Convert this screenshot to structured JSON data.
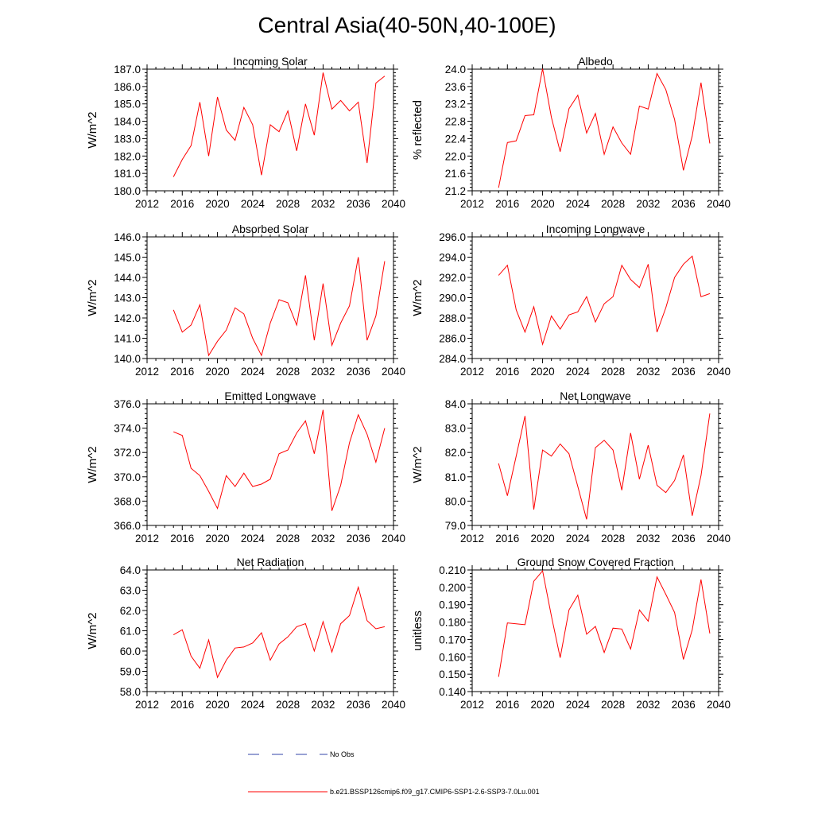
{
  "title": "Central Asia(40-50N,40-100E)",
  "legend": {
    "obs_label": "No Obs",
    "model_label": "b.e21.BSSP126cmip6.f09_g17.CMIP6-SSP1-2.6-SSP3-7.0Lu.001",
    "model_color": "#ff0000",
    "obs_color": "#3344aa"
  },
  "chart_data": [
    {
      "type": "line",
      "title": "Incoming Solar",
      "ylabel": "W/m^2",
      "xlim": [
        2012,
        2040
      ],
      "ylim": [
        180.0,
        187.0
      ],
      "x_ticks": [
        "2012",
        "2016",
        "2020",
        "2024",
        "2028",
        "2032",
        "2036",
        "2040"
      ],
      "y_ticks": [
        "180.0",
        "181.0",
        "182.0",
        "183.0",
        "184.0",
        "185.0",
        "186.0",
        "187.0"
      ],
      "x": [
        2015,
        2016,
        2017,
        2018,
        2019,
        2020,
        2021,
        2022,
        2023,
        2024,
        2025,
        2026,
        2027,
        2028,
        2029,
        2030,
        2031,
        2032,
        2033,
        2034,
        2035,
        2036,
        2037,
        2038,
        2039
      ],
      "values": [
        180.8,
        181.8,
        182.6,
        185.1,
        182.0,
        185.4,
        183.5,
        182.9,
        184.8,
        183.8,
        180.9,
        183.8,
        183.4,
        184.6,
        182.3,
        185.0,
        183.2,
        186.8,
        184.7,
        185.2,
        184.6,
        185.1,
        181.6,
        186.2,
        186.6
      ]
    },
    {
      "type": "line",
      "title": "Albedo",
      "ylabel": "% reflected",
      "xlim": [
        2012,
        2040
      ],
      "ylim": [
        21.2,
        24.0
      ],
      "x_ticks": [
        "2012",
        "2016",
        "2020",
        "2024",
        "2028",
        "2032",
        "2036",
        "2040"
      ],
      "y_ticks": [
        "21.2",
        "21.6",
        "22.0",
        "22.4",
        "22.8",
        "23.2",
        "23.6",
        "24.0"
      ],
      "x": [
        2015,
        2016,
        2017,
        2018,
        2019,
        2020,
        2021,
        2022,
        2023,
        2024,
        2025,
        2026,
        2027,
        2028,
        2029,
        2030,
        2031,
        2032,
        2033,
        2034,
        2035,
        2036,
        2037,
        2038,
        2039
      ],
      "values": [
        21.27,
        22.31,
        22.35,
        22.93,
        22.95,
        24.01,
        22.89,
        22.1,
        23.09,
        23.4,
        22.53,
        22.98,
        22.04,
        22.67,
        22.3,
        22.04,
        23.15,
        23.08,
        23.9,
        23.53,
        22.84,
        21.67,
        22.46,
        23.69,
        22.29
      ]
    },
    {
      "type": "line",
      "title": "Absorbed Solar",
      "ylabel": "W/m^2",
      "xlim": [
        2012,
        2040
      ],
      "ylim": [
        140.0,
        146.0
      ],
      "x_ticks": [
        "2012",
        "2016",
        "2020",
        "2024",
        "2028",
        "2032",
        "2036",
        "2040"
      ],
      "y_ticks": [
        "140.0",
        "141.0",
        "142.0",
        "143.0",
        "144.0",
        "145.0",
        "146.0"
      ],
      "x": [
        2015,
        2016,
        2017,
        2018,
        2019,
        2020,
        2021,
        2022,
        2023,
        2024,
        2025,
        2026,
        2027,
        2028,
        2029,
        2030,
        2031,
        2032,
        2033,
        2034,
        2035,
        2036,
        2037,
        2038,
        2039
      ],
      "values": [
        142.4,
        141.3,
        141.65,
        142.65,
        140.15,
        140.85,
        141.4,
        142.5,
        142.2,
        141.0,
        140.15,
        141.75,
        142.9,
        142.75,
        141.65,
        144.1,
        140.9,
        143.7,
        140.65,
        141.75,
        142.6,
        145.0,
        140.9,
        142.1,
        144.8
      ]
    },
    {
      "type": "line",
      "title": "Incoming Longwave",
      "ylabel": "W/m^2",
      "xlim": [
        2012,
        2040
      ],
      "ylim": [
        284.0,
        296.0
      ],
      "x_ticks": [
        "2012",
        "2016",
        "2020",
        "2024",
        "2028",
        "2032",
        "2036",
        "2040"
      ],
      "y_ticks": [
        "284.0",
        "286.0",
        "288.0",
        "290.0",
        "292.0",
        "294.0",
        "296.0"
      ],
      "x": [
        2015,
        2016,
        2017,
        2018,
        2019,
        2020,
        2021,
        2022,
        2023,
        2024,
        2025,
        2026,
        2027,
        2028,
        2029,
        2030,
        2031,
        2032,
        2033,
        2034,
        2035,
        2036,
        2037,
        2038,
        2039
      ],
      "values": [
        292.2,
        293.2,
        288.8,
        286.6,
        289.1,
        285.4,
        288.2,
        286.9,
        288.3,
        288.6,
        290.1,
        287.6,
        289.4,
        290.1,
        293.2,
        291.8,
        291.0,
        293.3,
        286.6,
        289.0,
        292.0,
        293.3,
        294.1,
        290.1,
        290.4
      ]
    },
    {
      "type": "line",
      "title": "Emitted Longwave",
      "ylabel": "W/m^2",
      "xlim": [
        2012,
        2040
      ],
      "ylim": [
        366.0,
        376.0
      ],
      "x_ticks": [
        "2012",
        "2016",
        "2020",
        "2024",
        "2028",
        "2032",
        "2036",
        "2040"
      ],
      "y_ticks": [
        "366.0",
        "368.0",
        "370.0",
        "372.0",
        "374.0",
        "376.0"
      ],
      "x": [
        2015,
        2016,
        2017,
        2018,
        2019,
        2020,
        2021,
        2022,
        2023,
        2024,
        2025,
        2026,
        2027,
        2028,
        2029,
        2030,
        2031,
        2032,
        2033,
        2034,
        2035,
        2036,
        2037,
        2038,
        2039
      ],
      "values": [
        373.7,
        373.4,
        370.7,
        370.1,
        368.8,
        367.4,
        370.1,
        369.2,
        370.3,
        369.2,
        369.4,
        369.8,
        371.9,
        372.2,
        373.6,
        374.6,
        371.9,
        375.5,
        367.2,
        369.3,
        372.8,
        375.1,
        373.5,
        371.2,
        374.0
      ]
    },
    {
      "type": "line",
      "title": "Net Longwave",
      "ylabel": "W/m^2",
      "xlim": [
        2012,
        2040
      ],
      "ylim": [
        79.0,
        84.0
      ],
      "x_ticks": [
        "2012",
        "2016",
        "2020",
        "2024",
        "2028",
        "2032",
        "2036",
        "2040"
      ],
      "y_ticks": [
        "79.0",
        "80.0",
        "81.0",
        "82.0",
        "83.0",
        "84.0"
      ],
      "x": [
        2015,
        2016,
        2017,
        2018,
        2019,
        2020,
        2021,
        2022,
        2023,
        2024,
        2025,
        2026,
        2027,
        2028,
        2029,
        2030,
        2031,
        2032,
        2033,
        2034,
        2035,
        2036,
        2037,
        2038,
        2039
      ],
      "values": [
        81.55,
        80.22,
        81.85,
        83.5,
        79.65,
        82.1,
        81.85,
        82.35,
        81.95,
        80.6,
        79.25,
        82.2,
        82.5,
        82.1,
        80.45,
        82.8,
        80.9,
        82.3,
        80.65,
        80.35,
        80.85,
        81.9,
        79.4,
        81.05,
        83.6
      ]
    },
    {
      "type": "line",
      "title": "Net Radiation",
      "ylabel": "W/m^2",
      "xlim": [
        2012,
        2040
      ],
      "ylim": [
        58.0,
        64.0
      ],
      "x_ticks": [
        "2012",
        "2016",
        "2020",
        "2024",
        "2028",
        "2032",
        "2036",
        "2040"
      ],
      "y_ticks": [
        "58.0",
        "59.0",
        "60.0",
        "61.0",
        "62.0",
        "63.0",
        "64.0"
      ],
      "x": [
        2015,
        2016,
        2017,
        2018,
        2019,
        2020,
        2021,
        2022,
        2023,
        2024,
        2025,
        2026,
        2027,
        2028,
        2029,
        2030,
        2031,
        2032,
        2033,
        2034,
        2035,
        2036,
        2037,
        2038,
        2039
      ],
      "values": [
        60.8,
        61.05,
        59.75,
        59.15,
        60.55,
        58.7,
        59.55,
        60.15,
        60.2,
        60.4,
        60.9,
        59.55,
        60.35,
        60.7,
        61.2,
        61.35,
        60.0,
        61.45,
        59.95,
        61.35,
        61.75,
        63.15,
        61.5,
        61.1,
        61.2
      ]
    },
    {
      "type": "line",
      "title": "Ground Snow Covered Fraction",
      "ylabel": "unitless",
      "xlim": [
        2012,
        2040
      ],
      "ylim": [
        0.14,
        0.21
      ],
      "x_ticks": [
        "2012",
        "2016",
        "2020",
        "2024",
        "2028",
        "2032",
        "2036",
        "2040"
      ],
      "y_ticks": [
        "0.140",
        "0.150",
        "0.160",
        "0.170",
        "0.180",
        "0.190",
        "0.200",
        "0.210"
      ],
      "x": [
        2015,
        2016,
        2017,
        2018,
        2019,
        2020,
        2021,
        2022,
        2023,
        2024,
        2025,
        2026,
        2027,
        2028,
        2029,
        2030,
        2031,
        2032,
        2033,
        2034,
        2035,
        2036,
        2037,
        2038,
        2039
      ],
      "values": [
        0.1485,
        0.1795,
        0.179,
        0.1785,
        0.2035,
        0.2095,
        0.1835,
        0.1595,
        0.187,
        0.1955,
        0.173,
        0.1775,
        0.1625,
        0.1765,
        0.176,
        0.1645,
        0.187,
        0.1805,
        0.206,
        0.196,
        0.1855,
        0.1585,
        0.1755,
        0.2045,
        0.1735
      ]
    }
  ]
}
